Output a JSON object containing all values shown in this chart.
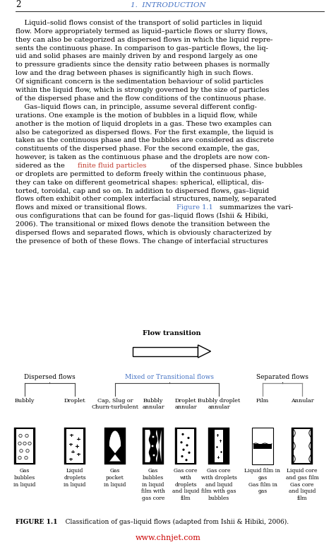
{
  "page_width": 4.77,
  "page_height": 7.88,
  "bg_color": "#ffffff",
  "header_num": "2",
  "header_title": "1.  INTRODUCTION",
  "text_color": "#000000",
  "header_title_color": "#4472c4",
  "red_color": "#cc0000",
  "blue_color": "#4472c4",
  "p1_lines": [
    "    Liquid–solid flows consist of the transport of solid particles in liquid",
    "flow. More appropriately termed as liquid–particle flows or slurry flows,",
    "they can also be categorized as dispersed flows in which the liquid repre-",
    "sents the continuous phase. In comparison to gas–particle flows, the liq-",
    "uid and solid phases are mainly driven by and respond largely as one",
    "to pressure gradients since the density ratio between phases is normally",
    "low and the drag between phases is significantly high in such flows.",
    "Of significant concern is the sedimentation behaviour of solid particles",
    "within the liquid flow, which is strongly governed by the size of particles",
    "of the dispersed phase and the flow conditions of the continuous phase."
  ],
  "p2_lines": [
    [
      [
        "    Gas–liquid flows can, in principle, assume several different config-",
        "black"
      ]
    ],
    [
      [
        "urations. One example is the motion of bubbles in a liquid flow, while",
        "black"
      ]
    ],
    [
      [
        "another is the motion of liquid droplets in a gas. These two examples can",
        "black"
      ]
    ],
    [
      [
        "also be categorized as dispersed flows. For the first example, the liquid is",
        "black"
      ]
    ],
    [
      [
        "taken as the continuous phase and the bubbles are considered as discrete",
        "black"
      ]
    ],
    [
      [
        "constituents of the dispersed phase. For the second example, the gas,",
        "black"
      ]
    ],
    [
      [
        "however, is taken as the continuous phase and the droplets are now con-",
        "black"
      ]
    ],
    [
      [
        "sidered as the ",
        "black"
      ],
      [
        "finite fluid particles",
        "red"
      ],
      [
        " of the dispersed phase. Since bubbles",
        "black"
      ]
    ],
    [
      [
        "or droplets are permitted to deform freely within the continuous phase,",
        "black"
      ]
    ],
    [
      [
        "they can take on different geometrical shapes: spherical, elliptical, dis-",
        "black"
      ]
    ],
    [
      [
        "torted, toroidal, cap and so on. In addition to dispersed flows, gas–liquid",
        "black"
      ]
    ],
    [
      [
        "flows often exhibit other complex interfacial structures, namely, separated",
        "black"
      ]
    ],
    [
      [
        "flows and mixed or transitional flows. ",
        "black"
      ],
      [
        "Figure 1.1",
        "blue"
      ],
      [
        " summarizes the vari-",
        "black"
      ]
    ],
    [
      [
        "ous configurations that can be found for gas–liquid flows (Ishii & Hibiki,",
        "black"
      ]
    ],
    [
      [
        "2006). The transitional or mixed flows denote the transition between the",
        "black"
      ]
    ],
    [
      [
        "dispersed flows and separated flows, which is obviously characterized by",
        "black"
      ]
    ],
    [
      [
        "the presence of both of these flows. The change of interfacial structures",
        "black"
      ]
    ]
  ],
  "group_labels": [
    "Dispersed flows",
    "Mixed or Transitional flows",
    "Separated flows"
  ],
  "group_colors": [
    "#000000",
    "#4472c4",
    "#000000"
  ],
  "flow_types": [
    "Bubbly",
    "Droplet",
    "Cap, Slug or\nChurn-turbulent",
    "Bubbly\nannular",
    "Droplet\nannular",
    "Bubbly droplet\nannular",
    "Film",
    "Annular"
  ],
  "flow_descs": [
    "Gas\nbubbles\nin liquid",
    "Liquid\ndroplets\nin liquid",
    "Gas\npocket\nin liquid",
    "Gas\nbubbles\nin liquid\nfilm with\ngas core",
    "Gas core\nwith\ndroplets\nand liquid\nfilm",
    "Gas core\nwith droplets\nand liquid\nfilm with gas\nbubbles",
    "Liquid film in\ngas\nGas film in\ngas",
    "Liquid core\nand gas film\nGas core\nand liquid\nfilm"
  ],
  "figure_caption_bold": "FIGURE 1.1",
  "figure_caption_rest": "   Classification of gas–liquid flows (adapted from Ishii & Hibiki, 2006).",
  "website": "www.chnjet.com"
}
